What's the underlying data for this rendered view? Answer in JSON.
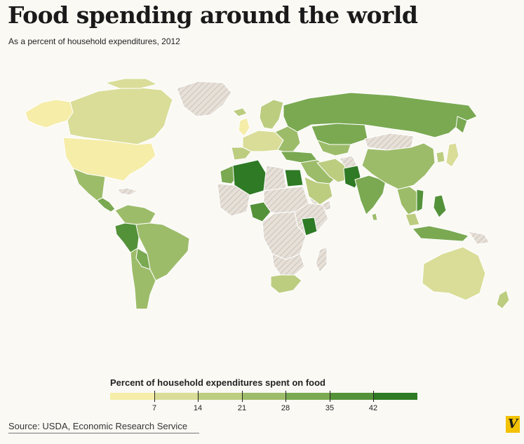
{
  "header": {
    "title": "Food spending around the world",
    "subtitle": "As a percent of household expenditures, 2012"
  },
  "legend": {
    "title": "Percent of household expenditures spent on food",
    "ticks": [
      "7",
      "14",
      "21",
      "28",
      "35",
      "42"
    ],
    "colors": [
      "#f5eda8",
      "#d9dd98",
      "#bccd80",
      "#9dbc6a",
      "#7aa952",
      "#54923a",
      "#2f7a25"
    ],
    "no_data_pattern": "diagonal-hatch"
  },
  "source": "Source: USDA, Economic Research Service",
  "logo": "V",
  "map_colors": {
    "no_data": "#e6e0d8",
    "hatch": "#cbc3b9",
    "border": "#ffffff"
  }
}
